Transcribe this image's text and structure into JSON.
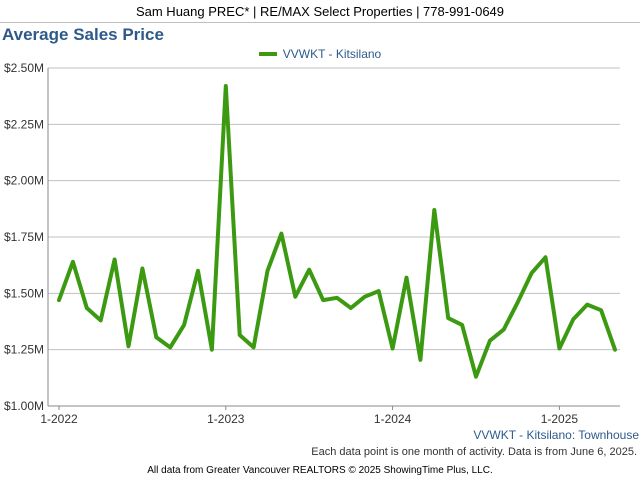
{
  "header": {
    "agent_line": "Sam Huang PREC* | RE/MAX Select Properties | 778-991-0649"
  },
  "chart_title": "Average Sales Price",
  "legend": {
    "label": "VVWKT - Kitsilano"
  },
  "series_caption": "VVWKT - Kitsilano: Townhouse",
  "note": "Each data point is one month of activity. Data is from June 6, 2025.",
  "footer": "All data from Greater Vancouver REALTORS © 2025 ShowingTime Plus, LLC.",
  "colors": {
    "series": "#3c9a12",
    "title": "#2e5a8a",
    "grid": "#c0c0c0"
  },
  "chart_data": {
    "type": "line",
    "title": "Average Sales Price",
    "xlabel": "",
    "ylabel": "",
    "ylim": [
      1000000,
      2500000
    ],
    "y_ticks": [
      "$1.00M",
      "$1.25M",
      "$1.50M",
      "$1.75M",
      "$2.00M",
      "$2.25M",
      "$2.50M"
    ],
    "x_ticks": [
      "1-2022",
      "1-2023",
      "1-2024",
      "1-2025"
    ],
    "grid": "horizontal",
    "legend": "top-center",
    "series": [
      {
        "name": "VVWKT - Kitsilano",
        "x": [
          "2022-01",
          "2022-02",
          "2022-03",
          "2022-04",
          "2022-05",
          "2022-06",
          "2022-07",
          "2022-08",
          "2022-09",
          "2022-10",
          "2022-11",
          "2022-12",
          "2023-01",
          "2023-02",
          "2023-03",
          "2023-04",
          "2023-05",
          "2023-06",
          "2023-07",
          "2023-08",
          "2023-09",
          "2023-10",
          "2023-11",
          "2023-12",
          "2024-01",
          "2024-02",
          "2024-03",
          "2024-04",
          "2024-05",
          "2024-06",
          "2024-07",
          "2024-08",
          "2024-09",
          "2024-10",
          "2024-11",
          "2024-12",
          "2025-01",
          "2025-02",
          "2025-03",
          "2025-04",
          "2025-05"
        ],
        "values": [
          1470000,
          1640000,
          1435000,
          1380000,
          1650000,
          1265000,
          1610000,
          1305000,
          1260000,
          1360000,
          1600000,
          1250000,
          2420000,
          1315000,
          1260000,
          1600000,
          1765000,
          1485000,
          1605000,
          1470000,
          1480000,
          1435000,
          1485000,
          1510000,
          1255000,
          1570000,
          1205000,
          1870000,
          1390000,
          1360000,
          1130000,
          1290000,
          1340000,
          1460000,
          1590000,
          1660000,
          1255000,
          1385000,
          1450000,
          1425000,
          1250000
        ]
      }
    ]
  }
}
